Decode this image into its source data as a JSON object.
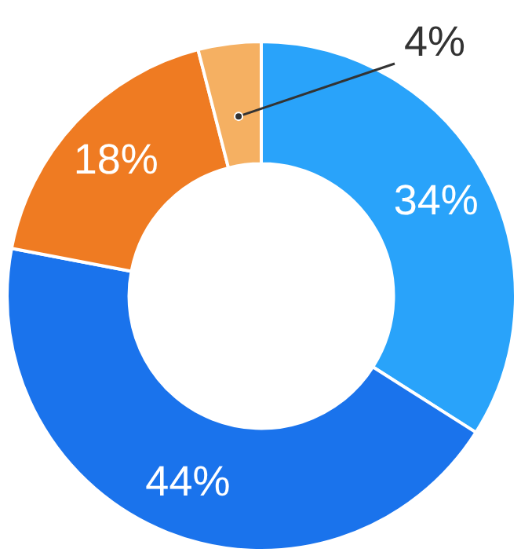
{
  "chart_data": {
    "type": "donut",
    "categories": [
      null,
      null,
      null,
      null
    ],
    "values": [
      34,
      44,
      18,
      4
    ],
    "colors": [
      "#29a3fa",
      "#1a73ec",
      "#ef7b22",
      "#f5b062"
    ],
    "value_labels": [
      "34%",
      "44%",
      "18%",
      "4%"
    ]
  }
}
